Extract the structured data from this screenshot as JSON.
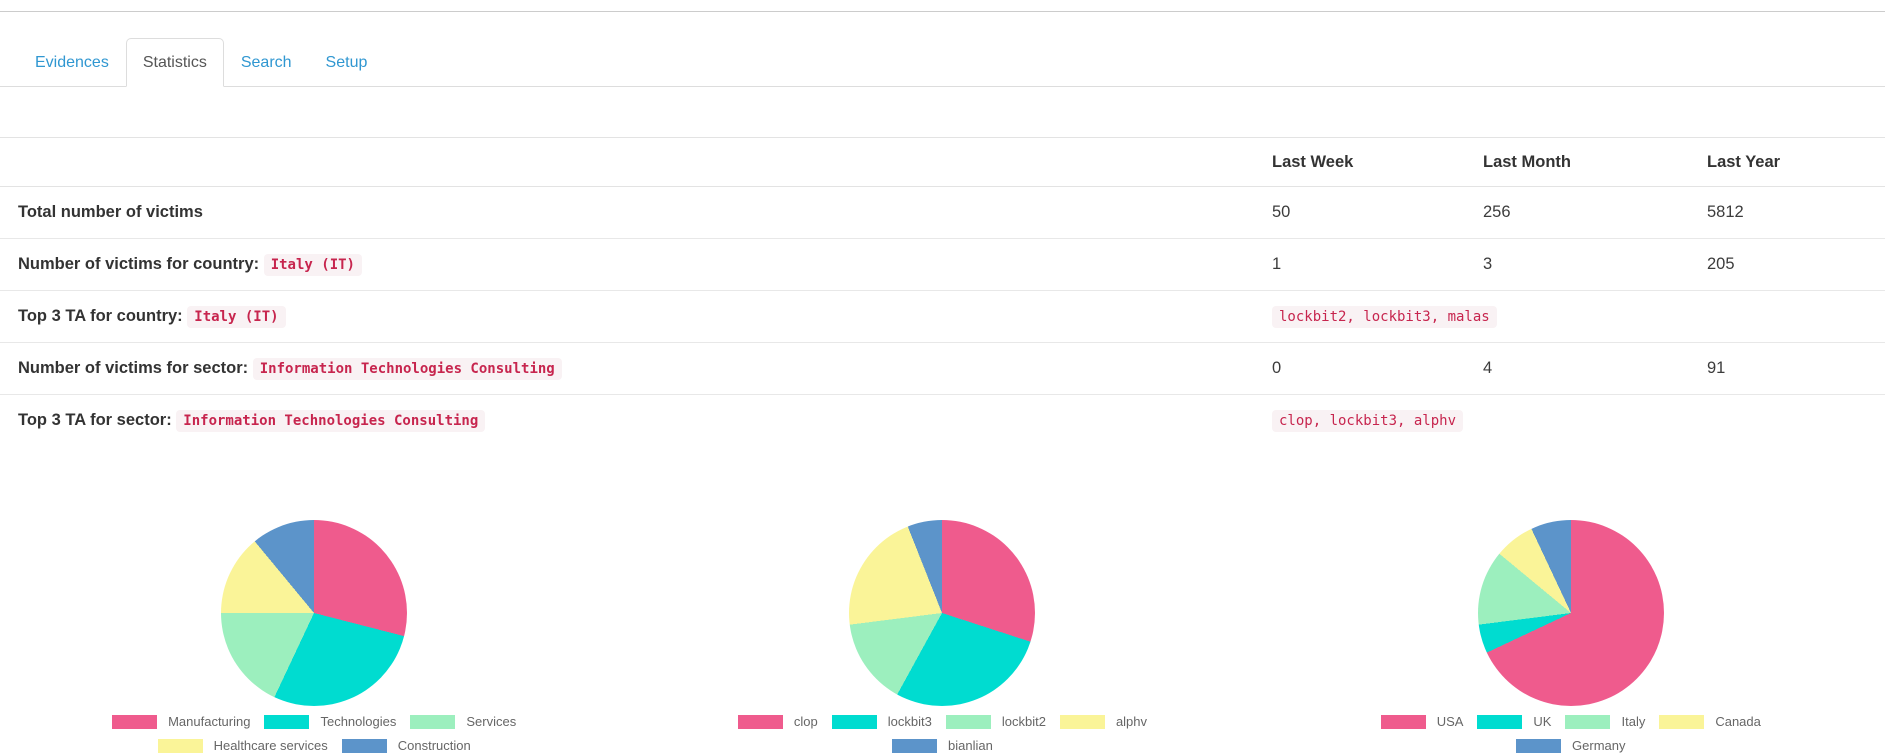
{
  "theme": {
    "link_color": "#3097d1",
    "border_color": "#dddddd",
    "code_color": "#c7254e",
    "code_bg": "#f9f2f4"
  },
  "tabs": [
    {
      "label": "Evidences",
      "active": false
    },
    {
      "label": "Statistics",
      "active": true
    },
    {
      "label": "Search",
      "active": false
    },
    {
      "label": "Setup",
      "active": false
    }
  ],
  "table": {
    "columns": [
      "Last Week",
      "Last Month",
      "Last Year"
    ],
    "rows": [
      {
        "label": "Total number of victims",
        "code": "",
        "values": [
          "50",
          "256",
          "5812"
        ]
      },
      {
        "label": "Number of victims for country:",
        "code": "Italy (IT)",
        "values": [
          "1",
          "3",
          "205"
        ]
      },
      {
        "label": "Top 3 TA for country:",
        "code": "Italy (IT)",
        "values_code": "lockbit2, lockbit3, malas"
      },
      {
        "label": "Number of victims for sector:",
        "code": "Information Technologies Consulting",
        "values": [
          "0",
          "4",
          "91"
        ]
      },
      {
        "label": "Top 3 TA for sector:",
        "code": "Information Technologies Consulting",
        "values_code": "clop, lockbit3, alphv"
      }
    ]
  },
  "chart_data": [
    {
      "type": "pie",
      "name": "victims-by-sector",
      "labels": [
        "Manufacturing",
        "Technologies",
        "Services",
        "Healthcare services",
        "Construction"
      ],
      "values": [
        29,
        28,
        18,
        14,
        11
      ],
      "colors": [
        "#ef5b8d",
        "#00dcd0",
        "#9cefbe",
        "#faf498",
        "#5c94ca"
      ],
      "legend_position": "bottom",
      "legend_rows": [
        3,
        2
      ],
      "start_angle_deg": 0,
      "direction": "clockwise"
    },
    {
      "type": "pie",
      "name": "top-threat-actors",
      "labels": [
        "clop",
        "lockbit3",
        "lockbit2",
        "alphv",
        "bianlian"
      ],
      "values": [
        30,
        28,
        15,
        21,
        6
      ],
      "colors": [
        "#ef5b8d",
        "#00dcd0",
        "#9cefbe",
        "#faf498",
        "#5c94ca"
      ],
      "legend_position": "bottom",
      "legend_rows": [
        4,
        1
      ],
      "start_angle_deg": 0,
      "direction": "clockwise"
    },
    {
      "type": "pie",
      "name": "victims-by-country",
      "labels": [
        "USA",
        "UK",
        "Italy",
        "Canada",
        "Germany"
      ],
      "values": [
        68,
        5,
        13,
        7,
        7
      ],
      "colors": [
        "#ef5b8d",
        "#00dcd0",
        "#9cefbe",
        "#faf498",
        "#5c94ca"
      ],
      "legend_position": "bottom",
      "legend_rows": [
        4,
        1
      ],
      "start_angle_deg": 0,
      "direction": "clockwise"
    }
  ]
}
